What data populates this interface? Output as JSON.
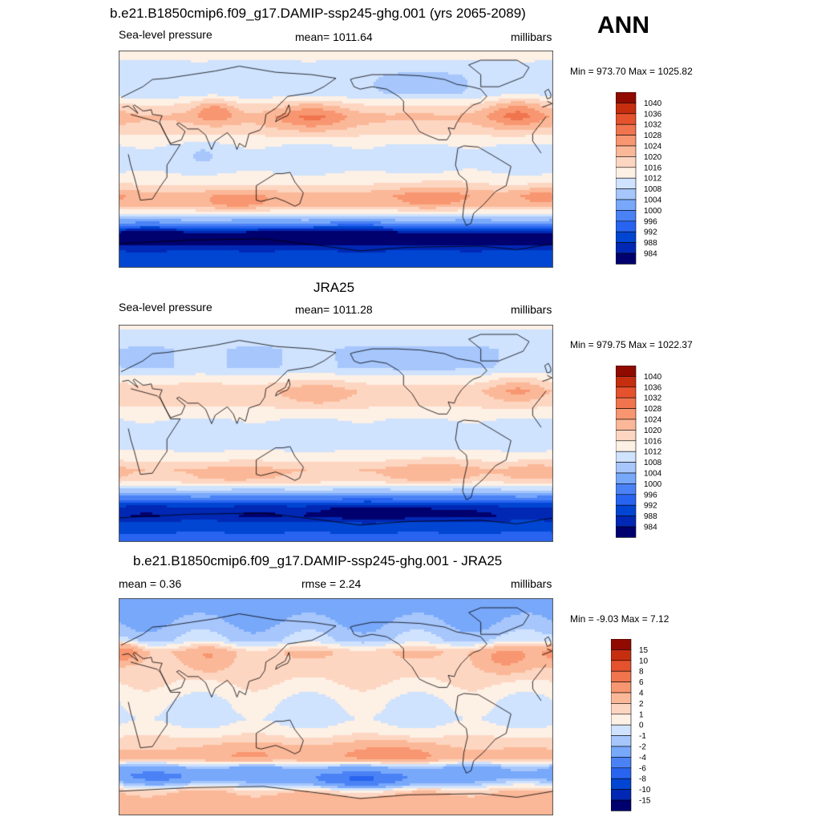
{
  "season": "ANN",
  "colors": {
    "slp_scale": [
      "#00006e",
      "#0028b4",
      "#0046d2",
      "#2864f0",
      "#4a82f6",
      "#78a8fa",
      "#a6c6fc",
      "#cfe2fe",
      "#fdf0e4",
      "#fdd6c2",
      "#fbb898",
      "#f79670",
      "#f0744e",
      "#e4522e",
      "#c62e10",
      "#900a00"
    ],
    "diff_scale": [
      "#00006e",
      "#0028b4",
      "#0046d2",
      "#2864f0",
      "#4a82f6",
      "#78a8fa",
      "#a6c6fc",
      "#cfe2fe",
      "#fdf0e4",
      "#fdd6c2",
      "#fbb898",
      "#f79670",
      "#f0744e",
      "#e4522e",
      "#c62e10",
      "#900a00"
    ],
    "coast": "#000000"
  },
  "panels": [
    {
      "title": "b.e21.B1850cmip6.f09_g17.DAMIP-ssp245-ghg.001 (yrs 2065-2089)",
      "left": "Sea-level pressure",
      "center": "mean= 1011.64",
      "right": "millibars",
      "minmax": "Min = 973.70 Max = 1025.82"
    },
    {
      "title": "JRA25",
      "left": "Sea-level pressure",
      "center": "mean= 1011.28",
      "right": "millibars",
      "minmax": "Min = 979.75 Max = 1022.37"
    },
    {
      "title": "b.e21.B1850cmip6.f09_g17.DAMIP-ssp245-ghg.001 - JRA25",
      "left": "mean =   0.36",
      "center": "rmse =   2.24",
      "right": "millibars",
      "minmax": "Min =  -9.03 Max =   7.12"
    }
  ],
  "chart_data": [
    {
      "type": "heatmap",
      "title": "b.e21.B1850cmip6.f09_g17.DAMIP-ssp245-ghg.001 (yrs 2065-2089)",
      "variable": "Sea-level pressure",
      "units": "millibars",
      "mean": 1011.64,
      "min": 973.7,
      "max": 1025.82,
      "colorbar_levels": [
        "1040",
        "1036",
        "1032",
        "1028",
        "1024",
        "1020",
        "1016",
        "1012",
        "1008",
        "1004",
        "1000",
        "996",
        "992",
        "988",
        "984"
      ],
      "lat_profile": [
        [
          90,
          1014
        ],
        [
          70,
          1009
        ],
        [
          55,
          1009
        ],
        [
          45,
          1016
        ],
        [
          35,
          1021
        ],
        [
          25,
          1018
        ],
        [
          12,
          1012
        ],
        [
          0,
          1010
        ],
        [
          -12,
          1012
        ],
        [
          -22,
          1016
        ],
        [
          -30,
          1022
        ],
        [
          -38,
          1021
        ],
        [
          -45,
          1012
        ],
        [
          -55,
          998
        ],
        [
          -62,
          984
        ],
        [
          -68,
          982
        ],
        [
          -75,
          988
        ],
        [
          -90,
          992
        ]
      ],
      "blobs": [
        [
          160,
          35,
          22,
          9,
          8
        ],
        [
          330,
          38,
          18,
          9,
          9
        ],
        [
          80,
          40,
          12,
          7,
          8
        ],
        [
          100,
          -35,
          20,
          6,
          5
        ],
        [
          260,
          -30,
          24,
          8,
          5
        ],
        [
          350,
          -30,
          14,
          6,
          4
        ],
        [
          180,
          -62,
          50,
          6,
          -6
        ],
        [
          30,
          -62,
          40,
          6,
          -4
        ],
        [
          250,
          62,
          18,
          8,
          -5
        ],
        [
          70,
          5,
          10,
          6,
          -3
        ]
      ]
    },
    {
      "type": "heatmap",
      "title": "JRA25",
      "variable": "Sea-level pressure",
      "units": "millibars",
      "mean": 1011.28,
      "min": 979.75,
      "max": 1022.37,
      "colorbar_levels": [
        "1040",
        "1036",
        "1032",
        "1028",
        "1024",
        "1020",
        "1016",
        "1012",
        "1008",
        "1004",
        "1000",
        "996",
        "992",
        "988",
        "984"
      ],
      "lat_profile": [
        [
          90,
          1013
        ],
        [
          70,
          1008
        ],
        [
          55,
          1008
        ],
        [
          45,
          1014
        ],
        [
          35,
          1019
        ],
        [
          25,
          1017
        ],
        [
          12,
          1012
        ],
        [
          0,
          1010
        ],
        [
          -12,
          1011
        ],
        [
          -22,
          1015
        ],
        [
          -30,
          1020
        ],
        [
          -38,
          1019
        ],
        [
          -45,
          1010
        ],
        [
          -55,
          996
        ],
        [
          -62,
          986
        ],
        [
          -68,
          984
        ],
        [
          -75,
          990
        ],
        [
          -90,
          994
        ]
      ],
      "blobs": [
        [
          165,
          33,
          20,
          8,
          5
        ],
        [
          330,
          36,
          16,
          8,
          6
        ],
        [
          100,
          -33,
          20,
          6,
          3
        ],
        [
          260,
          -30,
          22,
          8,
          4
        ],
        [
          345,
          -30,
          14,
          6,
          3
        ],
        [
          220,
          -65,
          40,
          6,
          -4
        ],
        [
          250,
          60,
          18,
          8,
          -4
        ]
      ]
    },
    {
      "type": "heatmap",
      "title": "b.e21.B1850cmip6.f09_g17.DAMIP-ssp245-ghg.001 - JRA25",
      "units": "millibars",
      "mean": 0.36,
      "rmse": 2.24,
      "min": -9.03,
      "max": 7.12,
      "colorbar_levels": [
        "15",
        "10",
        "8",
        "6",
        "4",
        "2",
        "1",
        "0",
        "-1",
        "-2",
        "-4",
        "-6",
        "-8",
        "-10",
        "-15"
      ],
      "lat_profile": [
        [
          90,
          -3
        ],
        [
          70,
          -2
        ],
        [
          55,
          -1
        ],
        [
          45,
          2
        ],
        [
          35,
          1.5
        ],
        [
          20,
          1
        ],
        [
          5,
          0
        ],
        [
          -10,
          -0.5
        ],
        [
          -25,
          1
        ],
        [
          -35,
          2
        ],
        [
          -42,
          3
        ],
        [
          -50,
          -2
        ],
        [
          -57,
          -3
        ],
        [
          -63,
          -1
        ],
        [
          -70,
          2
        ],
        [
          -80,
          3
        ],
        [
          -90,
          2
        ]
      ],
      "blobs": [
        [
          320,
          40,
          16,
          8,
          3
        ],
        [
          5,
          45,
          10,
          6,
          4
        ],
        [
          75,
          40,
          12,
          8,
          2
        ],
        [
          220,
          -38,
          28,
          6,
          3
        ],
        [
          110,
          -38,
          20,
          6,
          2
        ],
        [
          200,
          -62,
          40,
          5,
          -4
        ],
        [
          40,
          -60,
          25,
          5,
          -2
        ]
      ]
    }
  ]
}
